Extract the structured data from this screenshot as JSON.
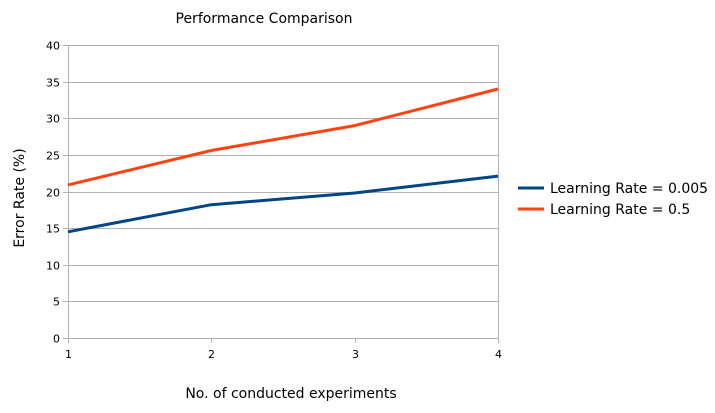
{
  "chart_data": {
    "type": "line",
    "title": "Performance Comparison",
    "xlabel": "No. of conducted experiments",
    "ylabel": "Error Rate (%)",
    "x": [
      1,
      2,
      3,
      4
    ],
    "xlim": [
      1,
      4
    ],
    "ylim": [
      0,
      40
    ],
    "yticks": [
      0,
      5,
      10,
      15,
      20,
      25,
      30,
      35,
      40
    ],
    "grid": true,
    "legend_position": "right",
    "series": [
      {
        "name": "Learning Rate = 0.005",
        "color": "#004586",
        "values": [
          14.5,
          18.2,
          19.8,
          22.1
        ]
      },
      {
        "name": "Learning Rate = 0.5",
        "color": "#ff420e",
        "values": [
          20.9,
          25.6,
          29.0,
          34.0
        ]
      }
    ]
  }
}
